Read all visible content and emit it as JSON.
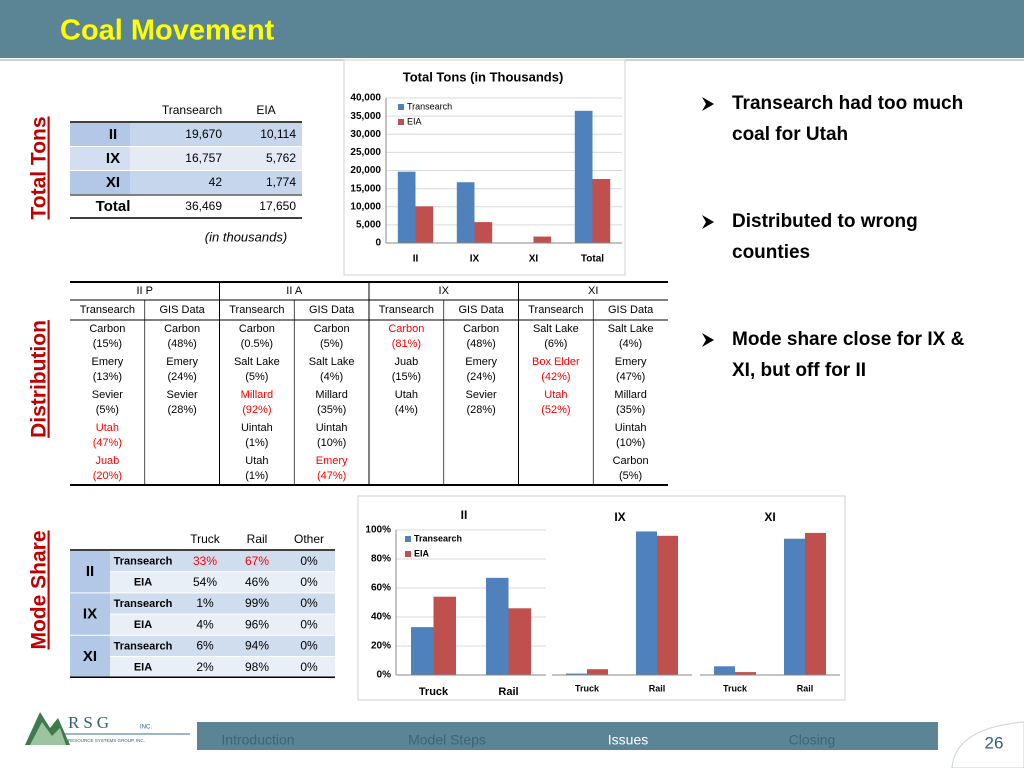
{
  "title": "Coal Movement",
  "bullets": [
    [
      "Transearch had too much",
      "coal for Utah"
    ],
    [
      "Distributed to wrong",
      "counties"
    ],
    [
      "Mode share close for IX &",
      "XI, but off for II"
    ]
  ],
  "side_labels": {
    "total_tons": "Total Tons",
    "distribution": "Distribution",
    "mode_share": "Mode Share"
  },
  "total_tons": {
    "columns": [
      "Transearch",
      "EIA"
    ],
    "rows": [
      {
        "label": "II",
        "values": [
          "19,670",
          "10,114"
        ]
      },
      {
        "label": "IX",
        "values": [
          "16,757",
          "5,762"
        ]
      },
      {
        "label": "XI",
        "values": [
          "42",
          "1,774"
        ]
      },
      {
        "label": "Total",
        "values": [
          "36,469",
          "17,650"
        ]
      }
    ],
    "note": "(in thousands)"
  },
  "distribution": {
    "groups": [
      "II P",
      "II A",
      "IX",
      "XI"
    ],
    "columns": [
      {
        "header": "Transearch",
        "entries": [
          {
            "name": "Carbon",
            "share": "(15%)"
          },
          {
            "name": "Emery",
            "share": "(13%)"
          },
          {
            "name": "Sevier",
            "share": "(5%)"
          },
          {
            "name": "Utah",
            "share": "(47%)",
            "highlight": true
          },
          {
            "name": "Juab",
            "share": "(20%)",
            "highlight": true
          }
        ]
      },
      {
        "header": "GIS Data",
        "entries": [
          {
            "name": "Carbon",
            "share": "(48%)"
          },
          {
            "name": "Emery",
            "share": "(24%)"
          },
          {
            "name": "Sevier",
            "share": "(28%)"
          }
        ]
      },
      {
        "header": "Transearch",
        "entries": [
          {
            "name": "Carbon",
            "share": "(0.5%)"
          },
          {
            "name": "Salt Lake",
            "share": "(5%)"
          },
          {
            "name": "Millard",
            "share": "(92%)",
            "highlight": true
          },
          {
            "name": "Uintah",
            "share": "(1%)"
          },
          {
            "name": "Utah",
            "share": "(1%)"
          }
        ]
      },
      {
        "header": "GIS Data",
        "entries": [
          {
            "name": "Carbon",
            "share": "(5%)"
          },
          {
            "name": "Salt Lake",
            "share": "(4%)"
          },
          {
            "name": "Millard",
            "share": "(35%)"
          },
          {
            "name": "Uintah",
            "share": "(10%)"
          },
          {
            "name": "Emery",
            "share": "(47%)",
            "highlight": true
          }
        ]
      },
      {
        "header": "Transearch",
        "entries": [
          {
            "name": "Carbon",
            "share": "(81%)",
            "highlight": true
          },
          {
            "name": "Juab",
            "share": "(15%)"
          },
          {
            "name": "Utah",
            "share": "(4%)"
          }
        ]
      },
      {
        "header": "GIS Data",
        "entries": [
          {
            "name": "Carbon",
            "share": "(48%)"
          },
          {
            "name": "Emery",
            "share": "(24%)"
          },
          {
            "name": "Sevier",
            "share": "(28%)"
          }
        ]
      },
      {
        "header": "Transearch",
        "entries": [
          {
            "name": "Salt Lake",
            "share": "(6%)"
          },
          {
            "name": "Box Elder",
            "share": "(42%)",
            "highlight": true
          },
          {
            "name": "Utah",
            "share": "(52%)",
            "highlight": true
          }
        ]
      },
      {
        "header": "GIS Data",
        "entries": [
          {
            "name": "Salt Lake",
            "share": "(4%)"
          },
          {
            "name": "Emery",
            "share": "(47%)"
          },
          {
            "name": "Millard",
            "share": "(35%)"
          },
          {
            "name": "Uintah",
            "share": "(10%)"
          },
          {
            "name": "Carbon",
            "share": "(5%)"
          }
        ]
      }
    ]
  },
  "mode_share": {
    "columns": [
      "Truck",
      "Rail",
      "Other"
    ],
    "groups": [
      {
        "label": "II",
        "rows": [
          {
            "source": "Transearch",
            "values": [
              "33%",
              "67%",
              "0%"
            ],
            "highlight": [
              true,
              true,
              false
            ]
          },
          {
            "source": "EIA",
            "values": [
              "54%",
              "46%",
              "0%"
            ]
          }
        ]
      },
      {
        "label": "IX",
        "rows": [
          {
            "source": "Transearch",
            "values": [
              "1%",
              "99%",
              "0%"
            ]
          },
          {
            "source": "EIA",
            "values": [
              "4%",
              "96%",
              "0%"
            ]
          }
        ]
      },
      {
        "label": "XI",
        "rows": [
          {
            "source": "Transearch",
            "values": [
              "6%",
              "94%",
              "0%"
            ]
          },
          {
            "source": "EIA",
            "values": [
              "2%",
              "98%",
              "0%"
            ]
          }
        ]
      }
    ]
  },
  "chart_data": [
    {
      "type": "bar",
      "title": "Total Tons (in Thousands)",
      "categories": [
        "II",
        "IX",
        "XI",
        "Total"
      ],
      "series": [
        {
          "name": "Transearch",
          "color": "#4f81bd",
          "values": [
            19670,
            16757,
            42,
            36469
          ]
        },
        {
          "name": "EIA",
          "color": "#c0504d",
          "values": [
            10114,
            5762,
            1774,
            17650
          ]
        }
      ],
      "ylim": [
        0,
        40000
      ],
      "yticks": [
        0,
        {
          "value": 5000,
          "label": "5,000"
        },
        {
          "value": 10000,
          "label": "10,000"
        },
        {
          "value": 15000,
          "label": "15,000"
        },
        {
          "value": 20000,
          "label": "20,000"
        },
        {
          "value": 25000,
          "label": "25,000"
        },
        {
          "value": 30000,
          "label": "30,000"
        },
        {
          "value": 35000,
          "label": "35,000"
        },
        {
          "value": 40000,
          "label": "40,000"
        }
      ],
      "grid": true,
      "legend": "top-left"
    },
    {
      "type": "bar",
      "title": "II",
      "categories": [
        "Truck",
        "Rail"
      ],
      "series": [
        {
          "name": "Transearch",
          "color": "#4f81bd",
          "values": [
            33,
            67
          ]
        },
        {
          "name": "EIA",
          "color": "#c0504d",
          "values": [
            54,
            46
          ]
        }
      ],
      "ylim": [
        0,
        100
      ],
      "yticks": [
        {
          "value": 0,
          "label": "0%"
        },
        {
          "value": 20,
          "label": "20%"
        },
        {
          "value": 40,
          "label": "40%"
        },
        {
          "value": 60,
          "label": "60%"
        },
        {
          "value": 80,
          "label": "80%"
        },
        {
          "value": 100,
          "label": "100%"
        }
      ],
      "grid": true,
      "legend": "top-left"
    },
    {
      "type": "bar",
      "title": "IX",
      "categories": [
        "Truck",
        "Rail"
      ],
      "series": [
        {
          "color": "#4f81bd",
          "values": [
            1,
            99
          ]
        },
        {
          "color": "#c0504d",
          "values": [
            4,
            96
          ]
        }
      ],
      "ylim": [
        0,
        100
      ]
    },
    {
      "type": "bar",
      "title": "XI",
      "categories": [
        "Truck",
        "Rail"
      ],
      "series": [
        {
          "color": "#4f81bd",
          "values": [
            6,
            94
          ]
        },
        {
          "color": "#c0504d",
          "values": [
            2,
            98
          ]
        }
      ],
      "ylim": [
        0,
        100
      ]
    }
  ],
  "logo": {
    "name": "RSG",
    "suffix": "INC.",
    "tagline": "RESOURCE SYSTEMS GROUP, INC."
  },
  "nav": {
    "items": [
      "Introduction",
      "Model Steps",
      "Issues",
      "Closing"
    ],
    "active": 2
  },
  "page_number": "26"
}
